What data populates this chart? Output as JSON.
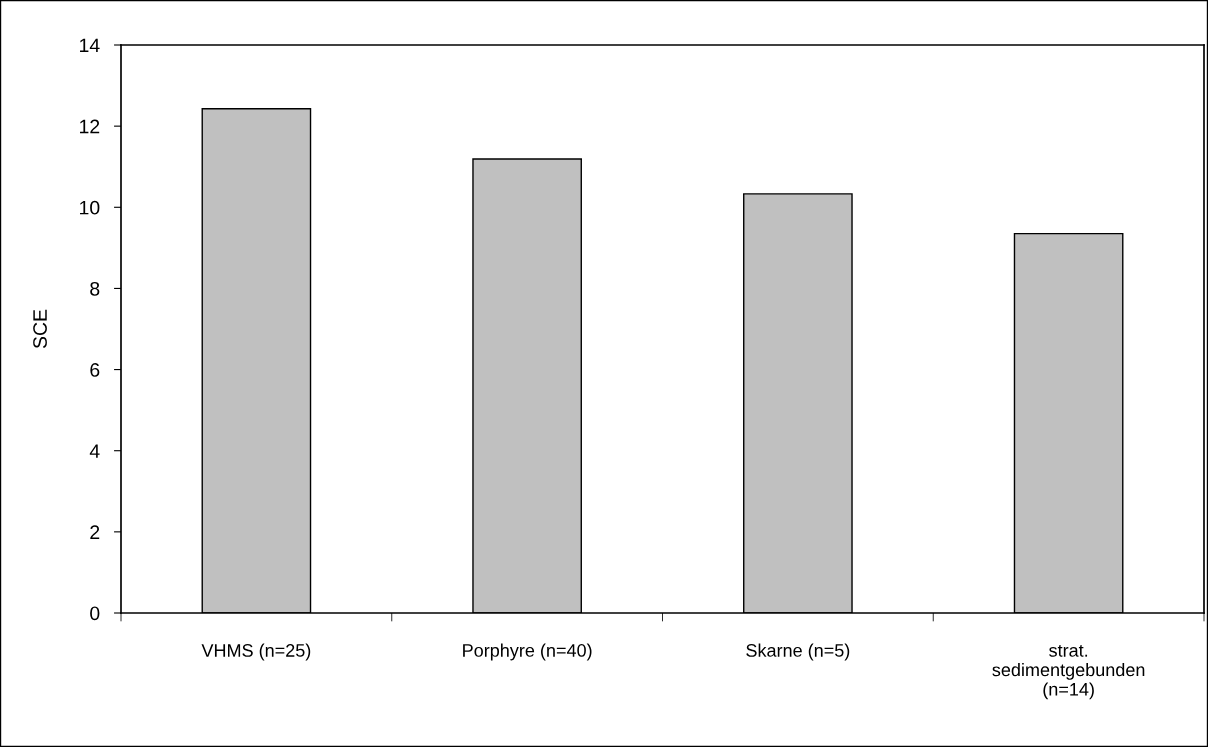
{
  "chart_data": {
    "type": "bar",
    "ylabel": "SCE",
    "categories": [
      "VHMS (n=25)",
      "Porphyre (n=40)",
      "Skarne (n=5)",
      "strat.\nsedimentgebunden\n(n=14)"
    ],
    "values": [
      12.43,
      11.19,
      10.33,
      9.35
    ],
    "color": "#c0c0c0",
    "ylim": [
      0,
      14
    ],
    "yticks": [
      0,
      2,
      4,
      6,
      8,
      10,
      12,
      14
    ],
    "grid": false
  }
}
